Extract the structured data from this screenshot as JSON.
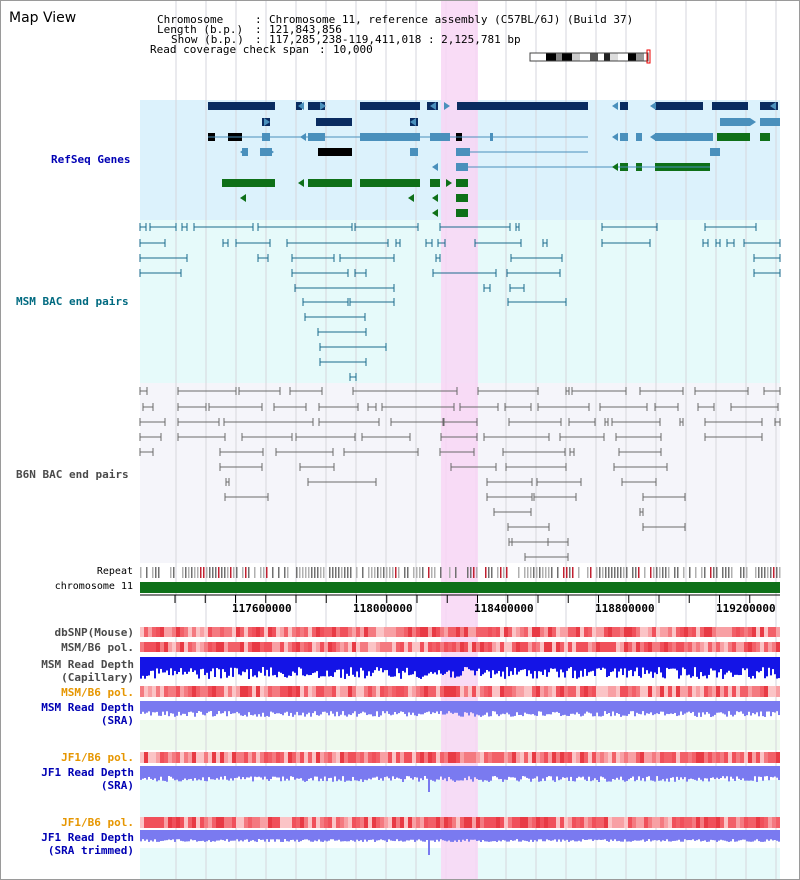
{
  "title": "Map View",
  "info": {
    "chromosome_label": "Chromosome",
    "chromosome_value": "Chromosome 11, reference assembly (C57BL/6J) (Build 37)",
    "length_label": "Length (b.p.)",
    "length_value": "121,843,856",
    "show_label": "Show (b.p.)",
    "show_value": "117,285,238-119,411,018 : 2,125,781 bp",
    "span_label": "Read coverage check span",
    "span_value": "10,000"
  },
  "tracks": {
    "refseq": "RefSeq Genes",
    "msm_bac": "MSM BAC end pairs",
    "b6n_bac": "B6N BAC end pairs",
    "repeat": "Repeat",
    "chromosome": "chromosome 11"
  },
  "axis": {
    "ticks": [
      "117600000",
      "118000000",
      "118400000",
      "118800000",
      "119200000"
    ]
  },
  "read_tracks": {
    "dbsnp": "dbSNP(Mouse)",
    "msm_b6_pol_1": "MSM/B6 pol.",
    "msm_read_depth_cap_1": "MSM Read Depth",
    "msm_read_depth_cap_2": "(Capillary)",
    "msm_b6_pol_2": "MSM/B6 pol.",
    "msm_read_depth_sra_1": "MSM Read Depth",
    "msm_read_depth_sra_2": "(SRA)",
    "jf1_b6_pol_1": "JF1/B6 pol.",
    "jf1_read_depth_1": "JF1 Read Depth",
    "jf1_read_depth_2": "(SRA)",
    "jf1_b6_pol_2": "JF1/B6 pol.",
    "jf1_read_depth_trim_1": "JF1 Read Depth",
    "jf1_read_depth_trim_2": "(SRA trimmed)"
  },
  "colors": {
    "refseq_bg": "#dcf2fc",
    "msm_bac_bg": "#e6fafa",
    "b6n_bac_bg": "#f5f5fa",
    "highlight": "#f8d6f4",
    "gene_dark": "#0a2c60",
    "gene_mid": "#4a90bc",
    "gene_green": "#0e7018",
    "bac_msm": "#1a6a8c",
    "bac_b6n": "#6a6a6a",
    "depth_dark": "#1414e6",
    "depth_light": "#7a7af0",
    "label_blue": "#0000b4",
    "label_teal": "#006a80",
    "label_gray": "#4a4a4a",
    "label_orange": "#e69600"
  }
}
